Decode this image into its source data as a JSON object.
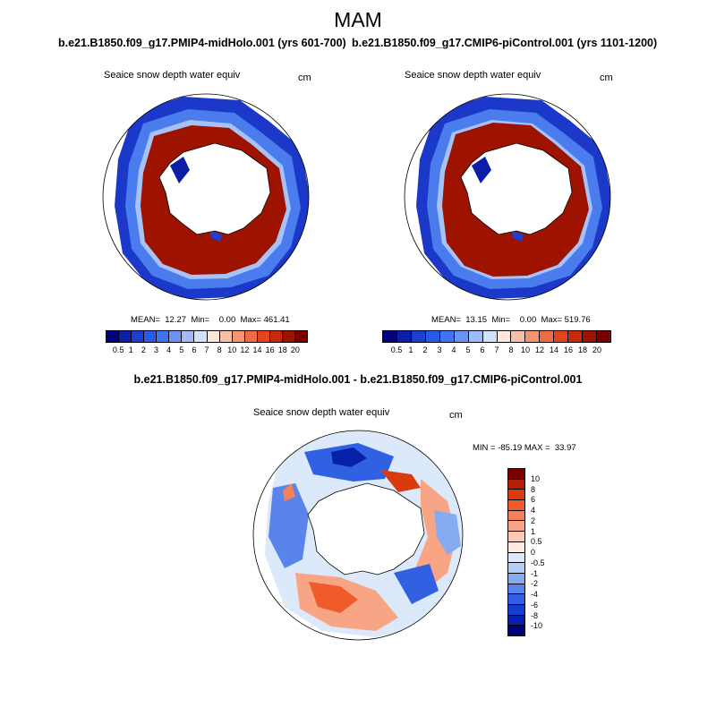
{
  "header": {
    "season": "MAM",
    "left_title": "b.e21.B1850.f09_g17.PMIP4-midHolo.001 (yrs 601-700)",
    "right_title": "b.e21.B1850.f09_g17.CMIP6-piControl.001 (yrs 1101-1200)",
    "diff_title": "b.e21.B1850.f09_g17.PMIP4-midHolo.001 - b.e21.B1850.f09_g17.CMIP6-piControl.001"
  },
  "panels": {
    "left": {
      "variable": "Seaice snow depth water equiv",
      "units": "cm",
      "stats": "MEAN=  12.27  Min=    0.00  Max= 461.41"
    },
    "right": {
      "variable": "Seaice snow depth water equiv",
      "units": "cm",
      "stats": "MEAN=  13.15  Min=    0.00  Max= 519.76"
    },
    "diff": {
      "variable": "Seaice snow depth water equiv",
      "units": "cm",
      "stats": "MIN = -85.19 MAX =  33.97"
    }
  },
  "colorbar_abs": {
    "labels": [
      "0.5",
      "1",
      "2",
      "3",
      "4",
      "5",
      "6",
      "7",
      "8",
      "10",
      "12",
      "14",
      "16",
      "18",
      "20"
    ],
    "colors": [
      "#00007a",
      "#0a1ea8",
      "#1e3fcf",
      "#2a5ae8",
      "#3f74ee",
      "#6b93f2",
      "#a0bcf6",
      "#d3e2fb",
      "#fde6da",
      "#f8c0a6",
      "#f59672",
      "#ef6b45",
      "#e3431f",
      "#c62a0a",
      "#9e1200",
      "#7a0000"
    ]
  },
  "colorbar_diff": {
    "labels": [
      "10",
      "8",
      "6",
      "4",
      "2",
      "1",
      "0.5",
      "0",
      "-0.5",
      "-1",
      "-2",
      "-4",
      "-6",
      "-8",
      "-10"
    ],
    "colors": [
      "#7a0000",
      "#b51e00",
      "#d93a0e",
      "#ef5b2a",
      "#f5805a",
      "#f8a586",
      "#fbcab4",
      "#feeadc",
      "#dce9fb",
      "#b3cdf6",
      "#86abf0",
      "#5984ea",
      "#3260e2",
      "#163dce",
      "#0620a8",
      "#00007a"
    ]
  },
  "chart_data": [
    {
      "type": "heatmap",
      "title": "Seaice snow depth water equiv",
      "subtitle": "b.e21.B1850.f09_g17.PMIP4-midHolo.001 (yrs 601-700)",
      "units": "cm",
      "projection": "south polar stereographic",
      "levels": [
        0.5,
        1,
        2,
        3,
        4,
        5,
        6,
        7,
        8,
        10,
        12,
        14,
        16,
        18,
        20
      ],
      "mean": 12.27,
      "min": 0.0,
      "max": 461.41
    },
    {
      "type": "heatmap",
      "title": "Seaice snow depth water equiv",
      "subtitle": "b.e21.B1850.f09_g17.CMIP6-piControl.001 (yrs 1101-1200)",
      "units": "cm",
      "projection": "south polar stereographic",
      "levels": [
        0.5,
        1,
        2,
        3,
        4,
        5,
        6,
        7,
        8,
        10,
        12,
        14,
        16,
        18,
        20
      ],
      "mean": 13.15,
      "min": 0.0,
      "max": 519.76
    },
    {
      "type": "heatmap",
      "title": "Seaice snow depth water equiv",
      "subtitle": "b.e21.B1850.f09_g17.PMIP4-midHolo.001 - b.e21.B1850.f09_g17.CMIP6-piControl.001",
      "units": "cm",
      "projection": "south polar stereographic",
      "levels": [
        -10,
        -8,
        -6,
        -4,
        -2,
        -1,
        -0.5,
        0,
        0.5,
        1,
        2,
        4,
        6,
        8,
        10
      ],
      "min": -85.19,
      "max": 33.97
    }
  ]
}
